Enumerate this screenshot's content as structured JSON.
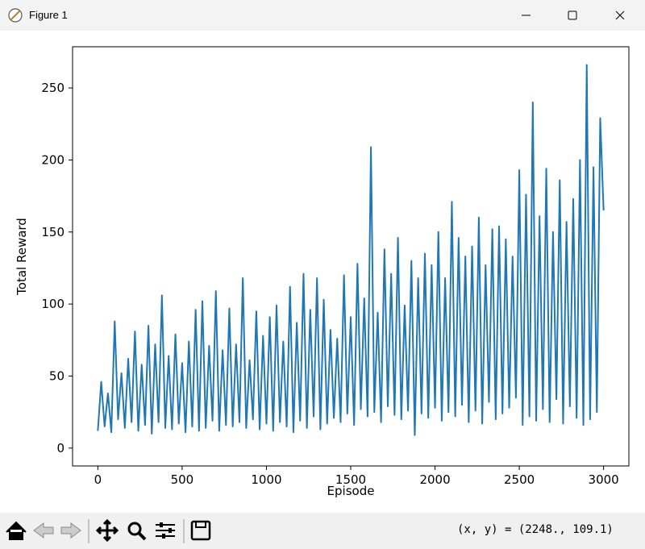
{
  "window": {
    "title": "Figure 1"
  },
  "chart_data": {
    "type": "line",
    "xlabel": "Episode",
    "ylabel": "Total Reward",
    "color": "#1f77b4",
    "x": [
      0,
      20,
      40,
      60,
      80,
      100,
      120,
      140,
      160,
      180,
      200,
      220,
      240,
      260,
      280,
      300,
      320,
      340,
      360,
      380,
      400,
      420,
      440,
      460,
      480,
      500,
      520,
      540,
      560,
      580,
      600,
      620,
      640,
      660,
      680,
      700,
      720,
      740,
      760,
      780,
      800,
      820,
      840,
      860,
      880,
      900,
      920,
      940,
      960,
      980,
      1000,
      1020,
      1040,
      1060,
      1080,
      1100,
      1120,
      1140,
      1160,
      1180,
      1200,
      1220,
      1240,
      1260,
      1280,
      1300,
      1320,
      1340,
      1360,
      1380,
      1400,
      1420,
      1440,
      1460,
      1480,
      1500,
      1520,
      1540,
      1560,
      1580,
      1600,
      1620,
      1640,
      1660,
      1680,
      1700,
      1720,
      1740,
      1760,
      1780,
      1800,
      1820,
      1840,
      1860,
      1880,
      1900,
      1920,
      1940,
      1960,
      1980,
      2000,
      2020,
      2040,
      2060,
      2080,
      2100,
      2120,
      2140,
      2160,
      2180,
      2200,
      2220,
      2240,
      2260,
      2280,
      2300,
      2320,
      2340,
      2360,
      2380,
      2400,
      2420,
      2440,
      2460,
      2480,
      2500,
      2520,
      2540,
      2560,
      2580,
      2600,
      2620,
      2640,
      2660,
      2680,
      2700,
      2720,
      2740,
      2760,
      2780,
      2800,
      2820,
      2840,
      2860,
      2880,
      2900,
      2920,
      2940,
      2960,
      2980,
      3000
    ],
    "values": [
      12,
      46,
      15,
      38,
      11,
      88,
      20,
      52,
      14,
      62,
      18,
      81,
      12,
      58,
      16,
      85,
      10,
      72,
      18,
      106,
      14,
      64,
      13,
      79,
      17,
      59,
      11,
      74,
      15,
      96,
      12,
      102,
      14,
      71,
      19,
      109,
      12,
      68,
      16,
      97,
      15,
      72,
      18,
      118,
      14,
      61,
      20,
      95,
      13,
      78,
      17,
      91,
      12,
      99,
      18,
      74,
      15,
      112,
      11,
      87,
      19,
      121,
      14,
      96,
      22,
      118,
      13,
      103,
      17,
      82,
      21,
      76,
      18,
      120,
      24,
      91,
      16,
      128,
      27,
      104,
      22,
      209,
      25,
      94,
      18,
      138,
      29,
      121,
      23,
      146,
      20,
      99,
      26,
      130,
      9,
      118,
      24,
      135,
      21,
      127,
      28,
      150,
      19,
      118,
      25,
      171,
      22,
      146,
      30,
      133,
      18,
      140,
      26,
      160,
      17,
      127,
      32,
      152,
      20,
      154,
      24,
      145,
      28,
      133,
      35,
      193,
      16,
      176,
      22,
      240,
      19,
      161,
      27,
      194,
      18,
      150,
      34,
      186,
      17,
      157,
      29,
      173,
      21,
      200,
      16,
      266,
      20,
      195,
      25,
      229,
      165
    ],
    "xlim": [
      -150,
      3150
    ],
    "ylim": [
      -12.4,
      278.6
    ],
    "xticks": [
      0,
      500,
      1000,
      1500,
      2000,
      2500,
      3000
    ],
    "yticks": [
      0,
      50,
      100,
      150,
      200,
      250
    ]
  },
  "toolbar": {
    "status": "(x, y) = (2248., 109.1)"
  }
}
